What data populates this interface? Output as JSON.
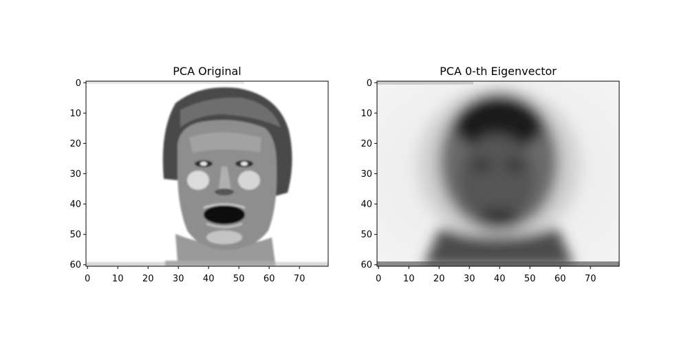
{
  "chart_data": [
    {
      "type": "heatmap",
      "title": "PCA Original",
      "colormap": "gray",
      "xlim": [
        -0.5,
        79.5
      ],
      "ylim": [
        60.5,
        -0.5
      ],
      "xticks": [
        0,
        10,
        20,
        30,
        40,
        50,
        60,
        70
      ],
      "yticks": [
        0,
        10,
        20,
        30,
        40,
        50,
        60
      ],
      "image_size": [
        61,
        80
      ],
      "content": "grayscale face image"
    },
    {
      "type": "heatmap",
      "title": "PCA 0-th Eigenvector",
      "colormap": "gray",
      "xlim": [
        -0.5,
        79.5
      ],
      "ylim": [
        60.5,
        -0.5
      ],
      "xticks": [
        0,
        10,
        20,
        30,
        40,
        50,
        60,
        70
      ],
      "yticks": [
        0,
        10,
        20,
        30,
        40,
        50,
        60
      ],
      "image_size": [
        61,
        80
      ],
      "content": "blurred eigenface image"
    }
  ]
}
